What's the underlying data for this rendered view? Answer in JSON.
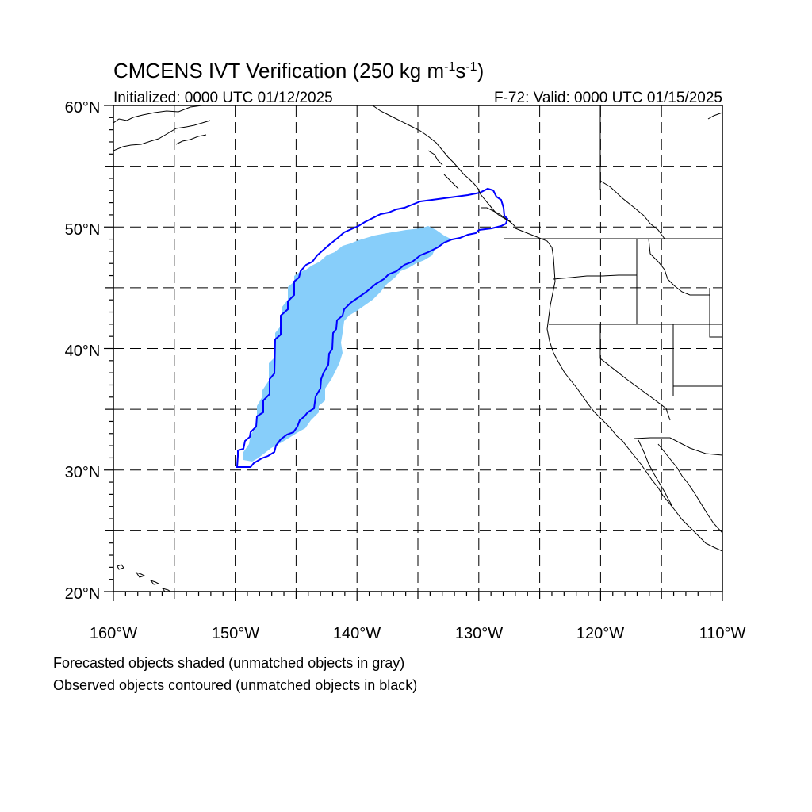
{
  "title": {
    "main": "CMCENS IVT Verification (250 kg m",
    "sup1": "-1",
    "mid": "s",
    "sup2": "-1",
    "end": ")"
  },
  "subtitle": {
    "left": "Initialized: 0000 UTC 01/12/2025",
    "right": "F-72: Valid: 0000 UTC 01/15/2025"
  },
  "map": {
    "lon_range": [
      -160,
      -110
    ],
    "lat_range": [
      20,
      60
    ],
    "projection": "cylindrical equidistant",
    "grid": "dashed every 5 degrees",
    "lat_labels": [
      "60°N",
      "50°N",
      "40°N",
      "30°N",
      "20°N"
    ],
    "lon_labels": [
      "160°W",
      "150°W",
      "140°W",
      "130°W",
      "120°W",
      "110°W"
    ],
    "forecast_fill_color": "#87cefa",
    "observed_contour_color": "#0000ff",
    "forecast_object": {
      "status": "matched",
      "approx_extent": {
        "lon": [
          -150,
          -132
        ],
        "lat": [
          31,
          50
        ]
      }
    },
    "observed_object": {
      "status": "matched",
      "approx_extent": {
        "lon": [
          -150,
          -127.5
        ],
        "lat": [
          30.5,
          53.5
        ]
      }
    }
  },
  "footer": {
    "line1": "Forecasted objects shaded (unmatched objects in gray)",
    "line2": "Observed objects contoured (unmatched objects in black)"
  }
}
